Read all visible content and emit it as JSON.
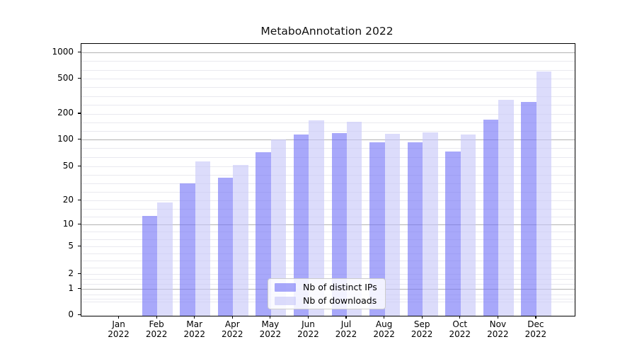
{
  "chart_data": {
    "type": "bar",
    "title": "MetaboAnnotation 2022",
    "x_months": [
      "Jan",
      "Feb",
      "Mar",
      "Apr",
      "May",
      "Jun",
      "Jul",
      "Aug",
      "Sep",
      "Oct",
      "Nov",
      "Dec"
    ],
    "x_year": "2022",
    "categories": [
      "Jan 2022",
      "Feb 2022",
      "Mar 2022",
      "Apr 2022",
      "May 2022",
      "Jun 2022",
      "Jul 2022",
      "Aug 2022",
      "Sep 2022",
      "Oct 2022",
      "Nov 2022",
      "Dec 2022"
    ],
    "series": [
      {
        "name": "Nb of distinct IPs",
        "slug": "distinct-ips",
        "color": "#7373f7",
        "values": [
          0,
          13,
          32,
          37,
          73,
          115,
          120,
          94,
          93,
          74,
          173,
          273
        ]
      },
      {
        "name": "Nb of downloads",
        "slug": "downloads",
        "color": "#c6c6f8",
        "values": [
          0,
          19,
          57,
          52,
          100,
          168,
          162,
          117,
          122,
          114,
          290,
          612
        ]
      }
    ],
    "bar_alpha": 0.62,
    "y_ticks": [
      0,
      1,
      2,
      5,
      10,
      20,
      50,
      100,
      200,
      500,
      1000
    ],
    "y_scale": "symlog-like (linear 0-1, logarithmic decades above)",
    "ylim": [
      0,
      1230
    ],
    "grid": {
      "major_values": [
        1,
        10,
        100,
        1000
      ],
      "minor": "every 0.1 decade",
      "major_color": "#b3b3b3",
      "minor_color": "#e9e9ef"
    },
    "legend": {
      "position": "lower center",
      "entries": [
        "Nb of distinct IPs",
        "Nb of downloads"
      ]
    },
    "colors": {
      "bar_distinct_ips_on_white": "#a9a9fa",
      "bar_downloads_on_white": "#dcdcfb",
      "axis": "#000000",
      "background": "#ffffff"
    }
  }
}
